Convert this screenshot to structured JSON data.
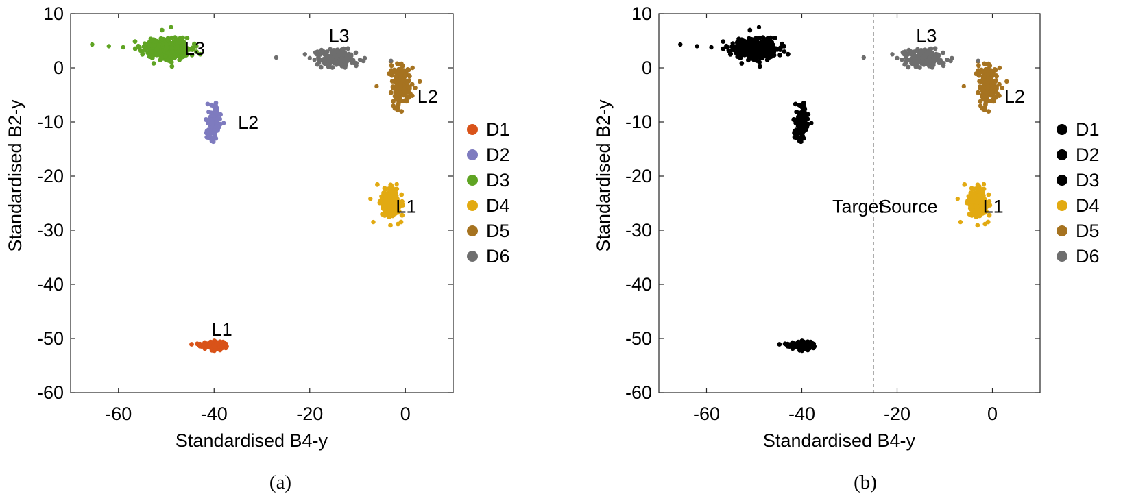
{
  "chart_data": [
    {
      "type": "scatter",
      "caption": "(a)",
      "xlabel": "Standardised B4-y",
      "ylabel": "Standardised B2-y",
      "xlim": [
        -70,
        10
      ],
      "ylim": [
        -60,
        10
      ],
      "xticks": [
        -60,
        -40,
        -20,
        0
      ],
      "yticks": [
        10,
        0,
        -10,
        -20,
        -30,
        -40,
        -50,
        -60
      ],
      "grid": false,
      "legend_placement": "right",
      "series": [
        {
          "name": "D1",
          "color": "#D95319",
          "clusters": [
            {
              "cx": -40.5,
              "cy": -51.2,
              "sx": 1.2,
              "sy": 0.35,
              "n": 140,
              "tail": [
                [
                  -37.5,
                  -51.0
                ],
                [
                  -38.3,
                  -51.3
                ],
                [
                  -42.3,
                  -51.4
                ]
              ]
            }
          ]
        },
        {
          "name": "D2",
          "color": "#7E7BBF",
          "clusters": [
            {
              "cx": -40.0,
              "cy": -10.0,
              "sx": 0.7,
              "sy": 1.5,
              "n": 110,
              "tail": [
                [
                  -38.0,
                  -10.2
                ],
                [
                  -40.5,
                  -13.5
                ],
                [
                  -40.2,
                  -7.0
                ]
              ]
            }
          ]
        },
        {
          "name": "D3",
          "color": "#5FA423",
          "clusters": [
            {
              "cx": -49.5,
              "cy": 3.5,
              "sx": 2.6,
              "sy": 1.0,
              "n": 320,
              "tail": [
                [
                  -65.5,
                  4.3
                ],
                [
                  -62.0,
                  4.0
                ],
                [
                  -59.0,
                  3.8
                ],
                [
                  -56.5,
                  3.5
                ],
                [
                  -54.5,
                  4.5
                ],
                [
                  -53.0,
                  3.0
                ],
                [
                  -49.0,
                  7.5
                ]
              ]
            }
          ]
        },
        {
          "name": "D4",
          "color": "#E2AA12",
          "clusters": [
            {
              "cx": -3.0,
              "cy": -25.0,
              "sx": 1.0,
              "sy": 1.6,
              "n": 180,
              "tail": [
                [
                  -6.7,
                  -28.5
                ],
                [
                  -7.3,
                  -24.2
                ],
                [
                  -1.8,
                  -21.5
                ]
              ]
            }
          ]
        },
        {
          "name": "D5",
          "color": "#A67320",
          "clusters": [
            {
              "cx": -1.0,
              "cy": -3.0,
              "sx": 0.9,
              "sy": 1.8,
              "n": 180,
              "tail": [
                [
                  -6.0,
                  -3.4
                ],
                [
                  3.0,
                  -2.5
                ],
                [
                  -2.5,
                  -7.0
                ],
                [
                  1.5,
                  0.0
                ]
              ]
            }
          ]
        },
        {
          "name": "D6",
          "color": "#6E6E6E",
          "clusters": [
            {
              "cx": -14.5,
              "cy": 1.8,
              "sx": 1.8,
              "sy": 0.9,
              "n": 170,
              "tail": [
                [
                  -27.0,
                  1.9
                ],
                [
                  -21.0,
                  2.5
                ],
                [
                  -20.0,
                  1.8
                ],
                [
                  -19.0,
                  1.5
                ],
                [
                  -9.5,
                  1.5
                ],
                [
                  -8.5,
                  1.8
                ],
                [
                  -3.0,
                  1.3
                ]
              ]
            }
          ]
        }
      ],
      "annotations": [
        {
          "text": "L3",
          "x": -50,
          "y": 3.7
        },
        {
          "text": "L3",
          "x": -16,
          "y": 6
        },
        {
          "text": "L2",
          "x": -35,
          "y": -10
        },
        {
          "text": "L2",
          "x": 2.5,
          "y": -5.2
        },
        {
          "text": "L1",
          "x": -2,
          "y": -25.5
        },
        {
          "text": "L1",
          "x": -40.5,
          "y": -48.2
        }
      ]
    },
    {
      "type": "scatter",
      "caption": "(b)",
      "xlabel": "Standardised B4-y",
      "ylabel": "Standardised B2-y",
      "xlim": [
        -70,
        10
      ],
      "ylim": [
        -60,
        10
      ],
      "xticks": [
        -60,
        -40,
        -20,
        0
      ],
      "yticks": [
        10,
        0,
        -10,
        -20,
        -30,
        -40,
        -50,
        -60
      ],
      "grid": false,
      "legend_placement": "right",
      "divider_x": -25,
      "series": [
        {
          "name": "D1",
          "color": "#000000",
          "clusters": [
            {
              "cx": -40.5,
              "cy": -51.2,
              "sx": 1.2,
              "sy": 0.35,
              "n": 140,
              "tail": [
                [
                  -37.5,
                  -51.0
                ],
                [
                  -38.3,
                  -51.3
                ],
                [
                  -42.3,
                  -51.4
                ]
              ]
            }
          ]
        },
        {
          "name": "D2",
          "color": "#000000",
          "clusters": [
            {
              "cx": -40.0,
              "cy": -10.0,
              "sx": 0.7,
              "sy": 1.5,
              "n": 110,
              "tail": [
                [
                  -38.0,
                  -10.2
                ],
                [
                  -40.5,
                  -13.5
                ],
                [
                  -40.2,
                  -7.0
                ]
              ]
            }
          ]
        },
        {
          "name": "D3",
          "color": "#000000",
          "clusters": [
            {
              "cx": -49.5,
              "cy": 3.5,
              "sx": 2.6,
              "sy": 1.0,
              "n": 320,
              "tail": [
                [
                  -65.5,
                  4.3
                ],
                [
                  -62.0,
                  4.0
                ],
                [
                  -59.0,
                  3.8
                ],
                [
                  -56.5,
                  3.5
                ],
                [
                  -54.5,
                  4.5
                ],
                [
                  -53.0,
                  3.0
                ],
                [
                  -49.0,
                  7.5
                ]
              ]
            }
          ]
        },
        {
          "name": "D4",
          "color": "#E2AA12",
          "clusters": [
            {
              "cx": -3.0,
              "cy": -25.0,
              "sx": 1.0,
              "sy": 1.6,
              "n": 180,
              "tail": [
                [
                  -6.7,
                  -28.5
                ],
                [
                  -7.3,
                  -24.2
                ],
                [
                  -1.8,
                  -21.5
                ]
              ]
            }
          ]
        },
        {
          "name": "D5",
          "color": "#A67320",
          "clusters": [
            {
              "cx": -1.0,
              "cy": -3.0,
              "sx": 0.9,
              "sy": 1.8,
              "n": 180,
              "tail": [
                [
                  -6.0,
                  -3.4
                ],
                [
                  3.0,
                  -2.5
                ],
                [
                  -2.5,
                  -7.0
                ],
                [
                  1.5,
                  0.0
                ]
              ]
            }
          ]
        },
        {
          "name": "D6",
          "color": "#6E6E6E",
          "clusters": [
            {
              "cx": -14.5,
              "cy": 1.8,
              "sx": 1.8,
              "sy": 0.9,
              "n": 170,
              "tail": [
                [
                  -27.0,
                  1.9
                ],
                [
                  -21.0,
                  2.5
                ],
                [
                  -20.0,
                  1.8
                ],
                [
                  -19.0,
                  1.5
                ],
                [
                  -9.5,
                  1.5
                ],
                [
                  -8.5,
                  1.8
                ],
                [
                  -3.0,
                  1.3
                ]
              ]
            }
          ]
        }
      ],
      "annotations": [
        {
          "text": "L3",
          "x": -16,
          "y": 6
        },
        {
          "text": "L2",
          "x": 2.5,
          "y": -5.2
        },
        {
          "text": "L1",
          "x": -2,
          "y": -25.5
        },
        {
          "text": "Target",
          "x": -33,
          "y": -25.5
        },
        {
          "text": "Source",
          "x": -23.5,
          "y": -25.5
        }
      ]
    }
  ]
}
